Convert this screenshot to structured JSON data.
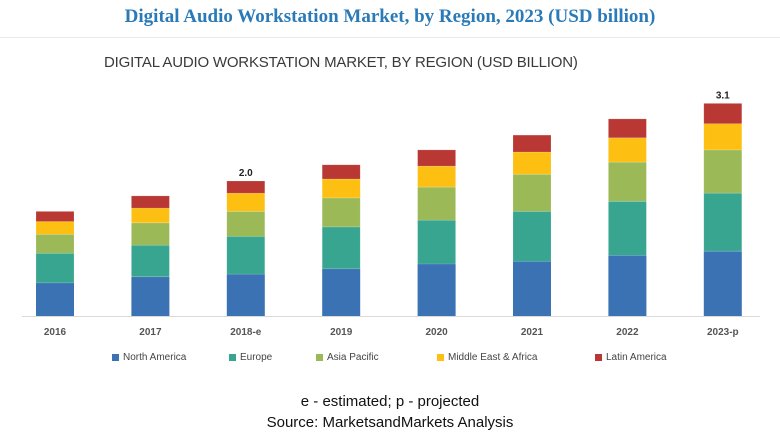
{
  "banner_title": "Digital Audio Workstation Market, by Region, 2023 (USD billion)",
  "chart_data": {
    "type": "bar",
    "stacked": true,
    "title": "DIGITAL AUDIO WORKSTATION MARKET, BY REGION (USD BILLION)",
    "xlabel": "",
    "ylabel": "",
    "ylim": [
      0,
      3.3
    ],
    "grid": false,
    "legend_position": "bottom",
    "categories": [
      "2016",
      "2017",
      "2018-e",
      "2019",
      "2020",
      "2021",
      "2022",
      "2023-p"
    ],
    "series": [
      {
        "name": "North America",
        "color": "#3a72b4",
        "values": [
          0.49,
          0.58,
          0.62,
          0.7,
          0.77,
          0.81,
          0.9,
          0.96
        ]
      },
      {
        "name": "Europe",
        "color": "#37a58f",
        "values": [
          0.44,
          0.47,
          0.56,
          0.62,
          0.65,
          0.74,
          0.8,
          0.86
        ]
      },
      {
        "name": "Asia Pacific",
        "color": "#9bb957",
        "values": [
          0.28,
          0.33,
          0.37,
          0.43,
          0.49,
          0.55,
          0.58,
          0.64
        ]
      },
      {
        "name": "Middle East & Africa",
        "color": "#fdbf12",
        "values": [
          0.19,
          0.22,
          0.27,
          0.28,
          0.31,
          0.33,
          0.36,
          0.39
        ]
      },
      {
        "name": "Latin America",
        "color": "#b93834",
        "values": [
          0.15,
          0.18,
          0.18,
          0.21,
          0.24,
          0.25,
          0.28,
          0.3
        ]
      }
    ],
    "annotations": [
      {
        "category": "2018-e",
        "text": "2.0"
      },
      {
        "category": "2023-p",
        "text": "3.1"
      }
    ]
  },
  "footnotes": {
    "legend_note": "e - estimated; p - projected",
    "source": "Source: MarketsandMarkets Analysis"
  }
}
